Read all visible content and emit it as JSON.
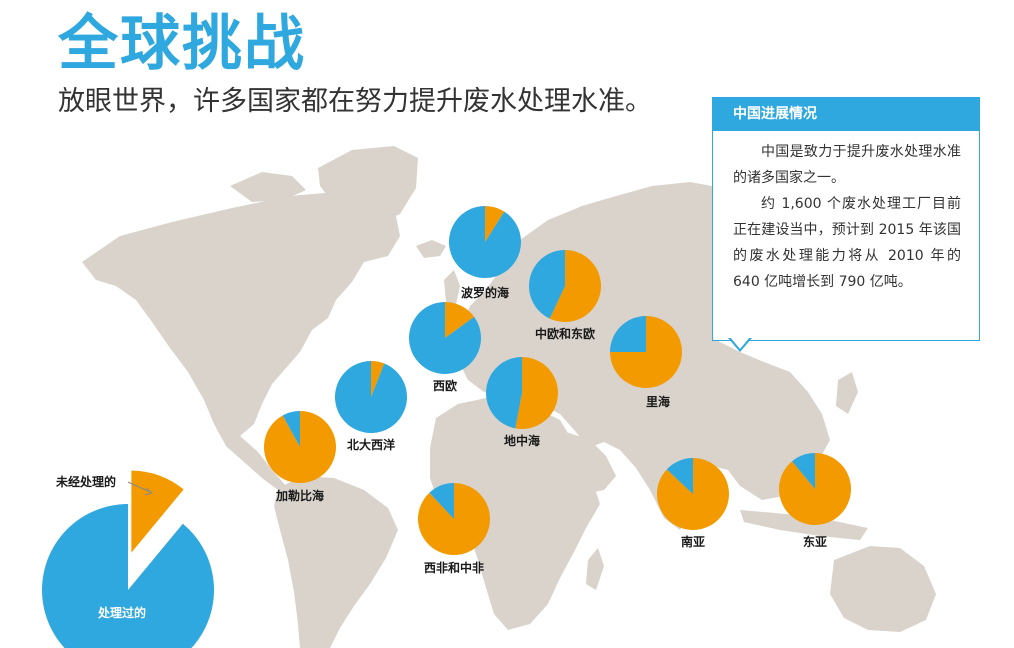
{
  "header": {
    "title": "全球挑战",
    "subtitle": "放眼世界，许多国家都在努力提升废水处理水准。"
  },
  "china_panel": {
    "heading": "中国进展情况",
    "paragraphs": [
      "中国是致力于提升废水处理水准的诸多国家之一。",
      "约 1,600 个废水处理工厂目前正在建设当中，预计到 2015 年该国的废水处理能力将从 2010 年的 640 亿吨增长到 790 亿吨。"
    ]
  },
  "colors": {
    "treated": "#2fa7df",
    "untreated": "#f39a00",
    "map_land": "#d9d3cc"
  },
  "chart_data": {
    "type": "pie",
    "title": "",
    "series_labels": {
      "treated": "处理过的",
      "untreated": "未经处理的"
    },
    "regions": [
      {
        "name": "波罗的海",
        "treated": 0.91,
        "untreated": 0.09
      },
      {
        "name": "中欧和东欧",
        "treated": 0.43,
        "untreated": 0.57
      },
      {
        "name": "西欧",
        "treated": 0.85,
        "untreated": 0.15
      },
      {
        "name": "北大西洋",
        "treated": 0.94,
        "untreated": 0.06
      },
      {
        "name": "地中海",
        "treated": 0.47,
        "untreated": 0.53
      },
      {
        "name": "里海",
        "treated": 0.25,
        "untreated": 0.75
      },
      {
        "name": "加勒比海",
        "treated": 0.08,
        "untreated": 0.92
      },
      {
        "name": "西非和中非",
        "treated": 0.12,
        "untreated": 0.88
      },
      {
        "name": "南亚",
        "treated": 0.13,
        "untreated": 0.87
      },
      {
        "name": "东亚",
        "treated": 0.11,
        "untreated": 0.89
      }
    ],
    "legend": {
      "treated": 0.89,
      "untreated": 0.11
    }
  }
}
